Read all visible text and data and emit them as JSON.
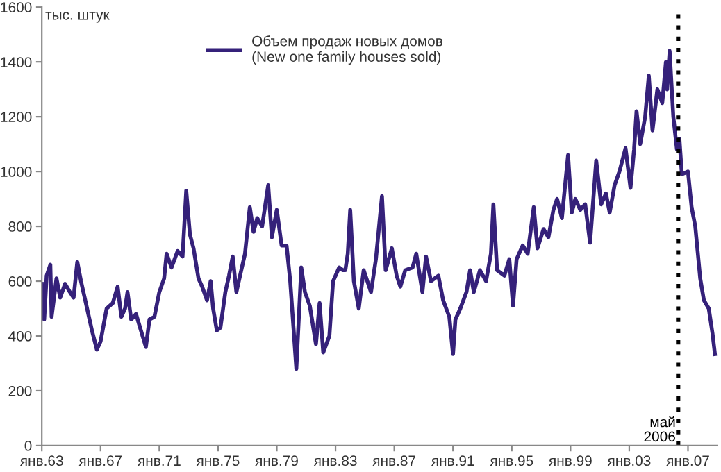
{
  "chart_data": {
    "type": "line",
    "ylabel": "тыс. штук",
    "x": [
      "1963-01",
      "1963-03",
      "1963-05",
      "1963-08",
      "1963-09",
      "1964-01",
      "1964-04",
      "1964-08",
      "1964-12",
      "1965-03",
      "1965-06",
      "1965-09",
      "1965-12",
      "1966-06",
      "1966-10",
      "1967-01",
      "1967-06",
      "1967-11",
      "1968-03",
      "1968-06",
      "1968-09",
      "1968-11",
      "1969-02",
      "1969-06",
      "1969-10",
      "1970-02",
      "1970-05",
      "1970-09",
      "1971-01",
      "1971-05",
      "1971-07",
      "1971-11",
      "1972-04",
      "1972-08",
      "1972-11",
      "1973-02",
      "1973-05",
      "1973-09",
      "1973-12",
      "1974-04",
      "1974-07",
      "1974-09",
      "1974-12",
      "1975-03",
      "1975-07",
      "1975-10",
      "1976-01",
      "1976-04",
      "1976-07",
      "1976-11",
      "1977-03",
      "1977-06",
      "1977-09",
      "1978-01",
      "1978-06",
      "1978-09",
      "1979-01",
      "1979-05",
      "1979-09",
      "1979-12",
      "1980-05",
      "1980-09",
      "1980-12",
      "1981-04",
      "1981-09",
      "1981-12",
      "1982-03",
      "1982-08",
      "1982-11",
      "1983-04",
      "1983-07",
      "1983-09",
      "1983-11",
      "1984-01",
      "1984-04",
      "1984-08",
      "1984-12",
      "1985-06",
      "1985-10",
      "1986-03",
      "1986-06",
      "1986-11",
      "1987-03",
      "1987-06",
      "1987-10",
      "1988-04",
      "1988-07",
      "1988-12",
      "1989-03",
      "1989-07",
      "1990-01",
      "1990-05",
      "1990-10",
      "1991-01",
      "1991-03",
      "1991-07",
      "1991-12",
      "1992-03",
      "1992-06",
      "1992-11",
      "1993-04",
      "1993-08",
      "1993-10",
      "1994-01",
      "1994-07",
      "1994-11",
      "1995-02",
      "1995-05",
      "1995-10",
      "1996-02",
      "1996-07",
      "1996-10",
      "1997-03",
      "1997-07",
      "1997-11",
      "1998-02",
      "1998-06",
      "1998-11",
      "1999-02",
      "1999-05",
      "1999-09",
      "2000-01",
      "2000-05",
      "2000-08",
      "2000-10",
      "2001-02",
      "2001-06",
      "2001-09",
      "2002-01",
      "2002-05",
      "2002-10",
      "2003-02",
      "2003-05",
      "2003-07",
      "2003-10",
      "2004-02",
      "2004-05",
      "2004-08",
      "2004-12",
      "2005-04",
      "2005-07",
      "2005-08",
      "2005-10",
      "2006-01",
      "2006-04",
      "2006-06",
      "2006-08",
      "2007-01",
      "2007-04",
      "2007-07",
      "2007-11",
      "2008-02",
      "2008-06",
      "2008-09",
      "2008-11"
    ],
    "series": [
      {
        "name": "Объем продаж новых домов\n(New one family houses sold)",
        "color": "#35217a",
        "values": [
          590,
          460,
          620,
          660,
          470,
          610,
          540,
          590,
          560,
          540,
          670,
          600,
          540,
          420,
          350,
          380,
          500,
          520,
          580,
          470,
          500,
          560,
          460,
          480,
          420,
          360,
          460,
          470,
          560,
          610,
          700,
          650,
          710,
          690,
          930,
          770,
          720,
          610,
          580,
          530,
          600,
          500,
          420,
          430,
          560,
          620,
          690,
          560,
          620,
          700,
          870,
          780,
          830,
          800,
          950,
          760,
          860,
          730,
          730,
          600,
          280,
          650,
          560,
          510,
          370,
          520,
          340,
          400,
          600,
          650,
          640,
          640,
          700,
          860,
          600,
          500,
          640,
          560,
          680,
          910,
          640,
          720,
          620,
          580,
          640,
          650,
          700,
          560,
          690,
          600,
          620,
          530,
          470,
          334,
          460,
          500,
          560,
          640,
          560,
          640,
          600,
          700,
          880,
          640,
          620,
          680,
          510,
          680,
          730,
          700,
          870,
          720,
          790,
          760,
          860,
          900,
          830,
          1060,
          850,
          900,
          860,
          880,
          740,
          920,
          1040,
          880,
          920,
          850,
          950,
          1000,
          1085,
          940,
          1080,
          1220,
          1100,
          1200,
          1350,
          1150,
          1300,
          1250,
          1400,
          1300,
          1440,
          1200,
          1080,
          1120,
          990,
          1000,
          870,
          800,
          610,
          530,
          500,
          410,
          334
        ]
      }
    ],
    "xlim": [
      "1963-01",
      "2009-01"
    ],
    "xticks": [
      {
        "value": "1963-01",
        "label": "янв.63"
      },
      {
        "value": "1967-01",
        "label": "янв.67"
      },
      {
        "value": "1971-01",
        "label": "янв.71"
      },
      {
        "value": "1975-01",
        "label": "янв.75"
      },
      {
        "value": "1979-01",
        "label": "янв.79"
      },
      {
        "value": "1983-01",
        "label": "янв.83"
      },
      {
        "value": "1987-01",
        "label": "янв.87"
      },
      {
        "value": "1991-01",
        "label": "янв.91"
      },
      {
        "value": "1995-01",
        "label": "янв.95"
      },
      {
        "value": "1999-01",
        "label": "янв.99"
      },
      {
        "value": "2003-01",
        "label": "янв.03"
      },
      {
        "value": "2007-01",
        "label": "янв.07"
      }
    ],
    "ylim": [
      0,
      1600
    ],
    "yticks": [
      0,
      200,
      400,
      600,
      800,
      1000,
      1200,
      1400,
      1600
    ],
    "ref_lines": [
      {
        "axis": "x",
        "value": "2006-05",
        "label": "май\n2006",
        "color": "#000000",
        "line_style": "dotted"
      }
    ],
    "legend": "top center",
    "grid": false
  }
}
